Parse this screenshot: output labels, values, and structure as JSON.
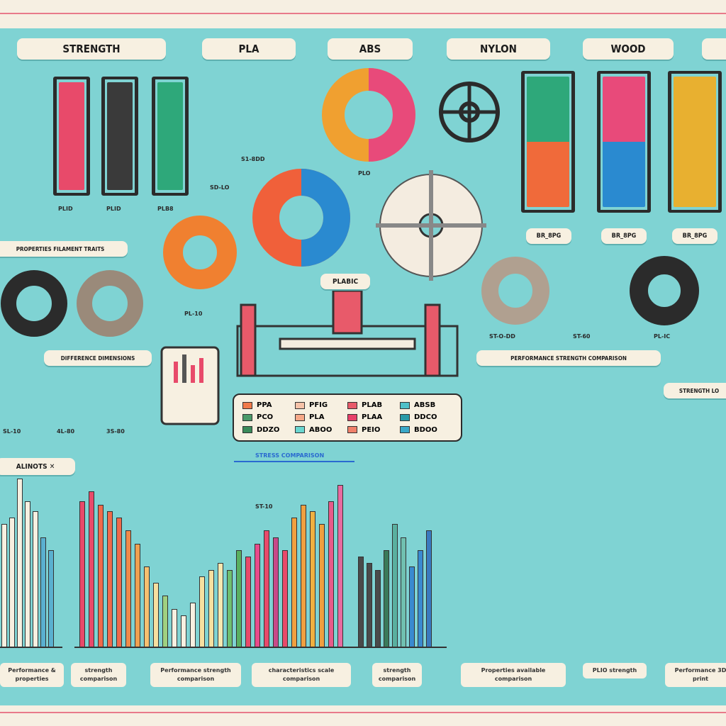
{
  "headers": [
    "STRENGTH",
    "PLA",
    "ABS",
    "NYLON",
    "WOOD",
    ""
  ],
  "colors": {
    "background": "#7fd3d3",
    "paper": "#f7f0e1",
    "accent": "#e87a8a"
  },
  "center_label": "PLABIC",
  "spool_labels": [
    "PLID",
    "PLID",
    "PLB8"
  ],
  "right_spool_labels": [
    "BR_8PG",
    "BR_8PG",
    "BR_8PG"
  ],
  "material_labels": {
    "pla": "PLO",
    "pl10": "PL-10",
    "pl16": "PL-IC",
    "st": "ST-O-DD",
    "st60": "ST-60",
    "s1": "S1-8DD",
    "s2": "SD-LO",
    "st10": "ST-10"
  },
  "section_labels": [
    "PROPERTIES FILAMENT TRAITS",
    "DIFFERENCE DIMENSIONS",
    "PERFORMANCE STRENGTH COMPARISON",
    "STRENGTH LO"
  ],
  "small_labels": [
    "SL-10",
    "4L-80",
    "3S-80"
  ],
  "alinots": "ALINOTS ✕",
  "arrow_label": "STRESS COMPARISON",
  "legend": [
    {
      "label": "PPA",
      "color": "#f07a4a"
    },
    {
      "label": "PFIG",
      "color": "#f6c2a8"
    },
    {
      "label": "PLAB",
      "color": "#e85a6a"
    },
    {
      "label": "ABSB",
      "color": "#4fc0c8"
    },
    {
      "label": "PCO",
      "color": "#4a9a6a"
    },
    {
      "label": "PLA",
      "color": "#f6a888"
    },
    {
      "label": "PLAA",
      "color": "#e8406a"
    },
    {
      "label": "DDCO",
      "color": "#2a9aa8"
    },
    {
      "label": "DDZO",
      "color": "#3a8a5a"
    },
    {
      "label": "ABOO",
      "color": "#6ad6d0"
    },
    {
      "label": "PEIO",
      "color": "#f0806a"
    },
    {
      "label": "BDOO",
      "color": "#3aa8c8"
    }
  ],
  "captions": [
    "Performance & properties",
    "strength comparison",
    "Performance strength comparison",
    "characteristics scale comparison",
    "strength comparison",
    "Properties available comparison",
    "PLIO strength",
    "Performance 3D print"
  ],
  "bars": {
    "left": [
      {
        "v": 38,
        "c": "#f7f0e1"
      },
      {
        "v": 40,
        "c": "#f7f0e1"
      },
      {
        "v": 52,
        "c": "#f7f0e1"
      },
      {
        "v": 45,
        "c": "#f7f0e1"
      },
      {
        "v": 42,
        "c": "#f7f0e1"
      },
      {
        "v": 34,
        "c": "#5ab0d0"
      },
      {
        "v": 30,
        "c": "#5ab0d0"
      }
    ],
    "middle": [
      {
        "v": 45,
        "c": "#e84a6a"
      },
      {
        "v": 48,
        "c": "#e84a6a"
      },
      {
        "v": 44,
        "c": "#f06a4a"
      },
      {
        "v": 42,
        "c": "#f06a4a"
      },
      {
        "v": 40,
        "c": "#f06a4a"
      },
      {
        "v": 36,
        "c": "#f08a4a"
      },
      {
        "v": 32,
        "c": "#f0a050"
      },
      {
        "v": 25,
        "c": "#f7c070"
      },
      {
        "v": 20,
        "c": "#f7e0a0"
      },
      {
        "v": 16,
        "c": "#a0d080"
      },
      {
        "v": 12,
        "c": "#f7f0e1"
      },
      {
        "v": 10,
        "c": "#f7f0e1"
      },
      {
        "v": 14,
        "c": "#f7f0e1"
      },
      {
        "v": 22,
        "c": "#f7e0a0"
      },
      {
        "v": 24,
        "c": "#f7e0a0"
      },
      {
        "v": 26,
        "c": "#f7e8b0"
      },
      {
        "v": 24,
        "c": "#70c070"
      },
      {
        "v": 30,
        "c": "#5ab060"
      },
      {
        "v": 28,
        "c": "#e84a6a"
      },
      {
        "v": 32,
        "c": "#e84a8a"
      },
      {
        "v": 36,
        "c": "#e84a6a"
      },
      {
        "v": 34,
        "c": "#c84a8a"
      },
      {
        "v": 30,
        "c": "#e84a6a"
      },
      {
        "v": 40,
        "c": "#f0a040"
      },
      {
        "v": 44,
        "c": "#f0a040"
      },
      {
        "v": 42,
        "c": "#f0b040"
      },
      {
        "v": 38,
        "c": "#f0a040"
      },
      {
        "v": 45,
        "c": "#e85a8a"
      },
      {
        "v": 50,
        "c": "#e86aa0"
      }
    ],
    "right": [
      {
        "v": 28,
        "c": "#4a4a4a"
      },
      {
        "v": 26,
        "c": "#4a4a4a"
      },
      {
        "v": 24,
        "c": "#4a4a4a"
      },
      {
        "v": 30,
        "c": "#3a7a5a"
      },
      {
        "v": 38,
        "c": "#5ab0a0"
      },
      {
        "v": 34,
        "c": "#70c0b0"
      },
      {
        "v": 25,
        "c": "#3a8ad0"
      },
      {
        "v": 30,
        "c": "#3a8ad0"
      },
      {
        "v": 36,
        "c": "#3a7ac0"
      }
    ]
  }
}
